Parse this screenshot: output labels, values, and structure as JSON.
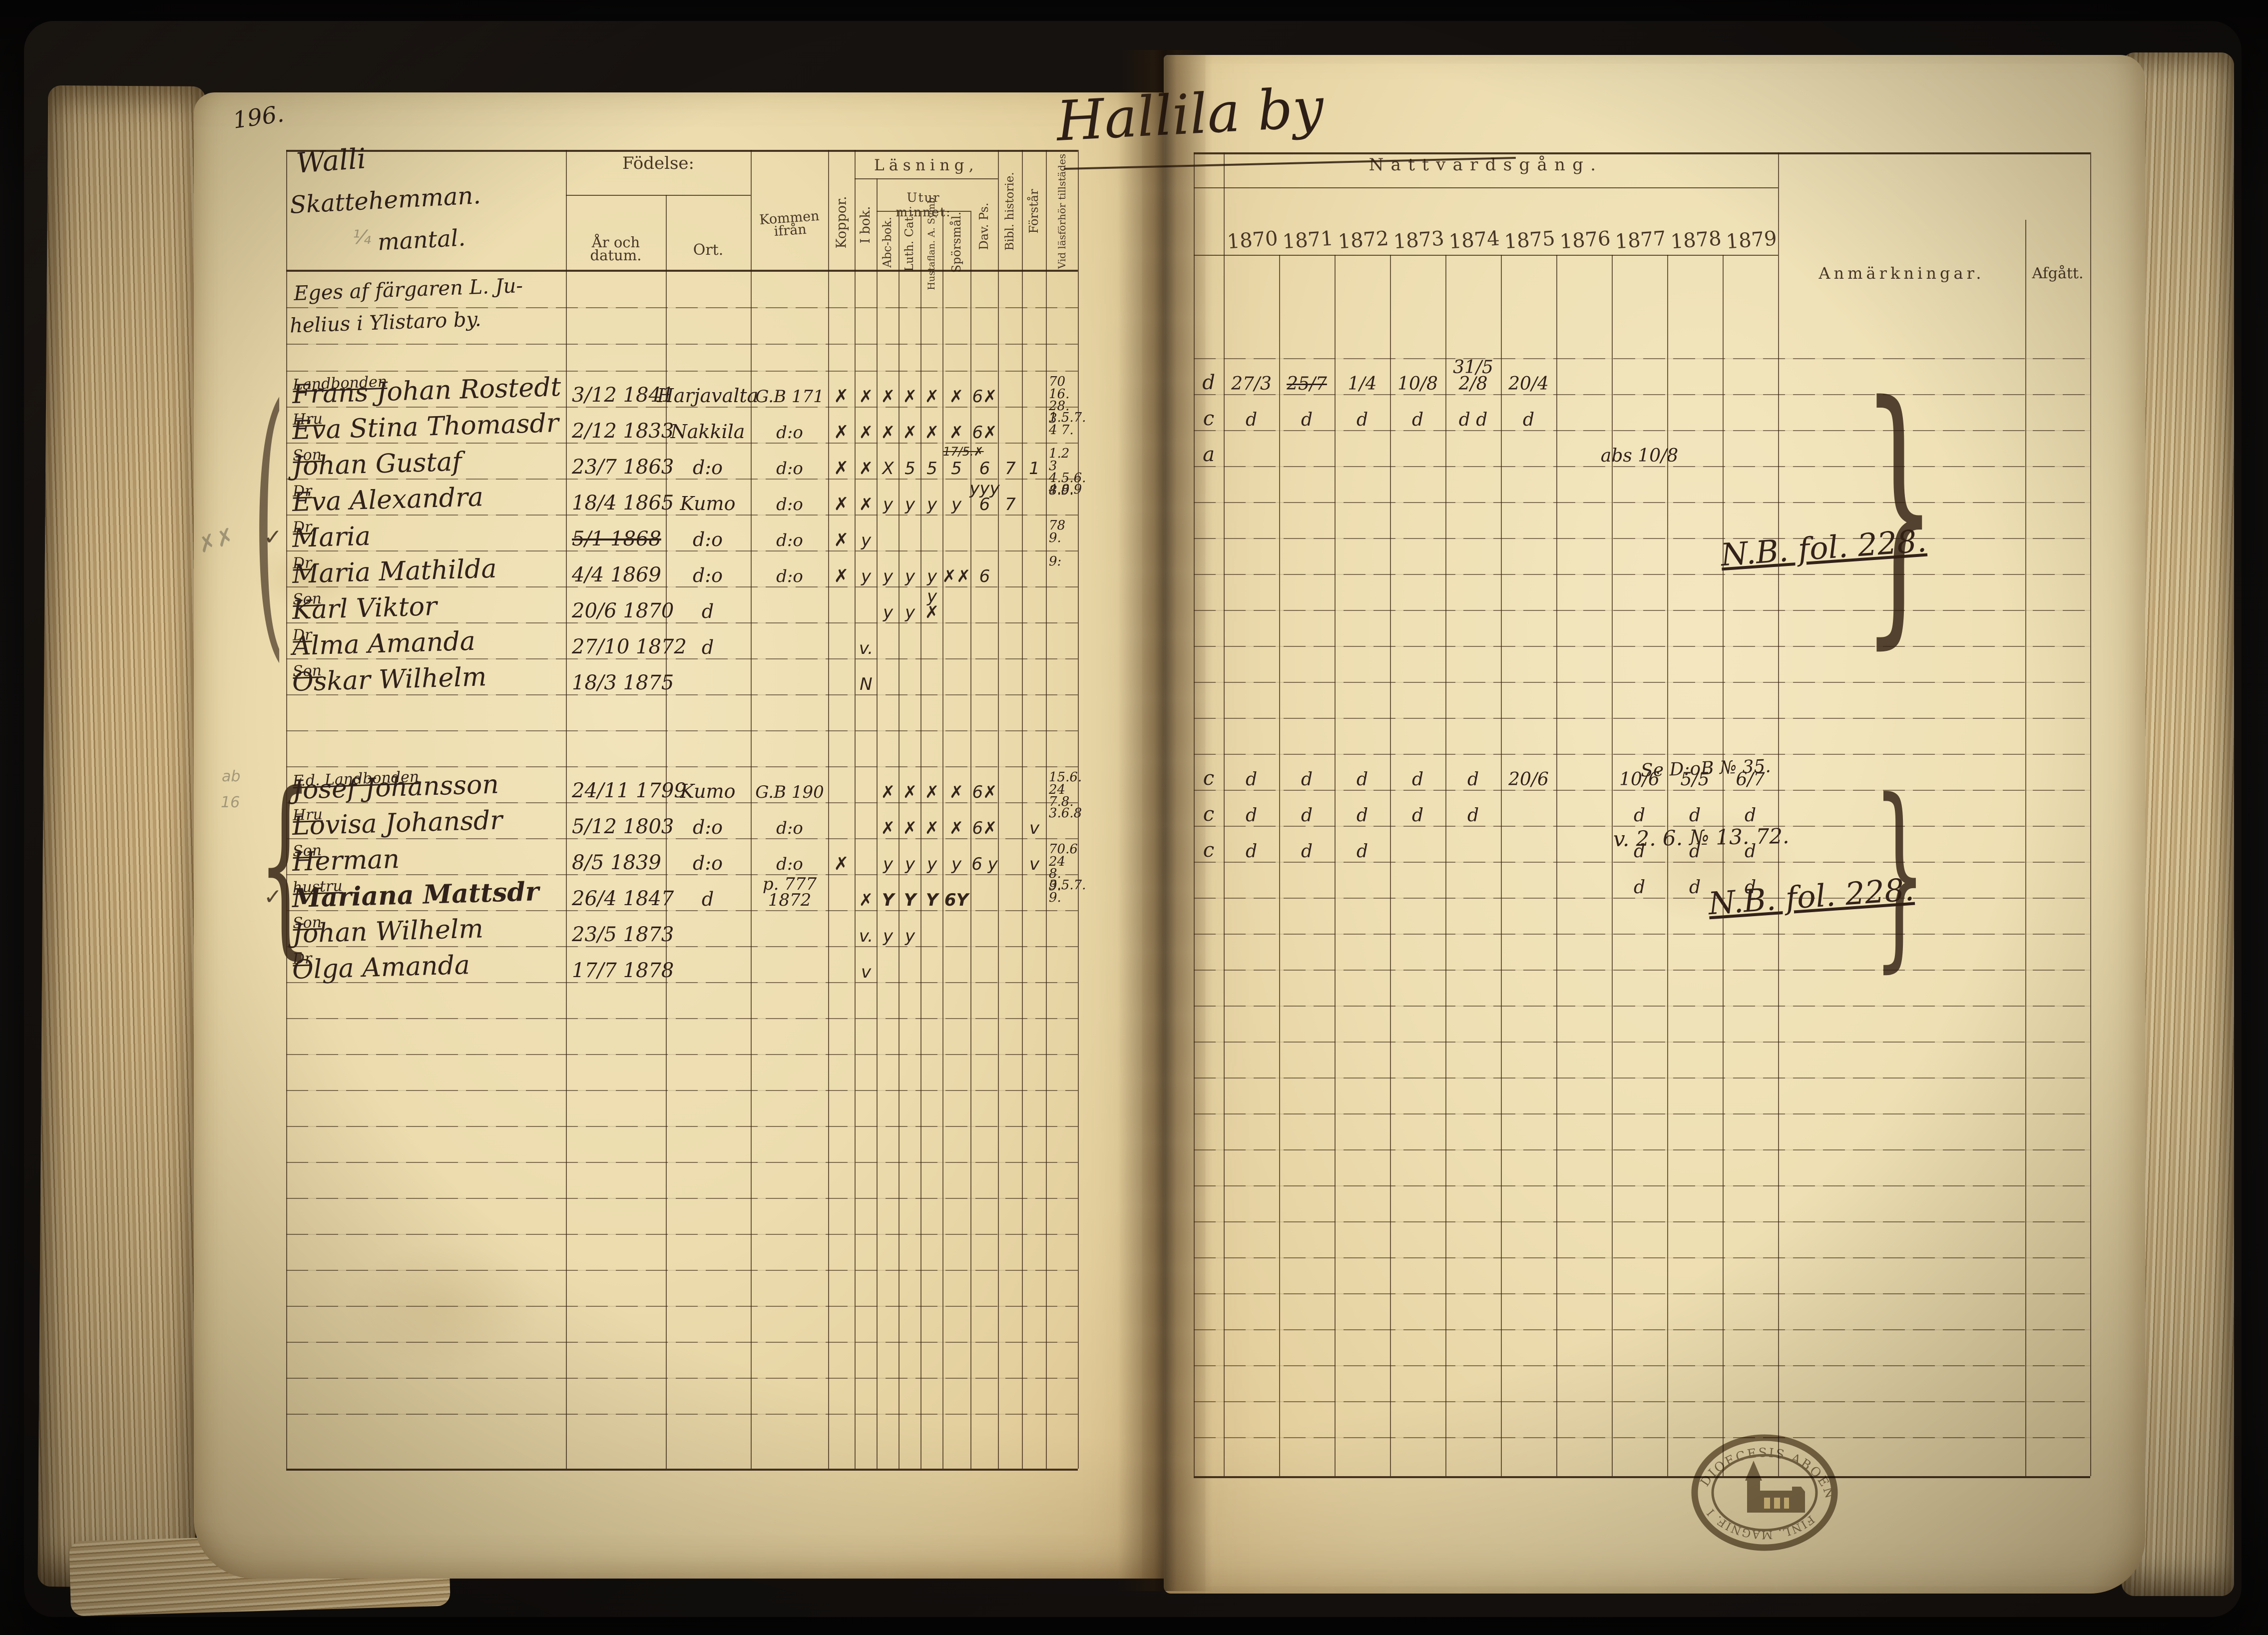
{
  "colors": {
    "background": "#0b0a09",
    "cover": "#15110e",
    "paper": "#eedfb4",
    "ink_handwriting": "#30211a",
    "ink_printed": "#483626",
    "pencil": "#767058",
    "stamp": "#6b5c45"
  },
  "book": {
    "folio_number": "196.",
    "village_title": "Hallila by"
  },
  "left_page": {
    "estate": {
      "name": "Walli",
      "type": "Skattehemman.",
      "fraction": "¼",
      "unit": "mantal."
    },
    "ownership_note": [
      "Eges af färgaren L. Ju-",
      "helius i Ylistaro by."
    ],
    "headers": {
      "fodelse": "Födelse:",
      "ar_och_datum": "År och datum.",
      "ort": "Ort.",
      "kommen_ifran": "Kommen ifrån",
      "koppor": "Koppor.",
      "lasning": "Läsning,",
      "i_bok": "I bok.",
      "utur_minnet": "Utur minnet:",
      "abc_bok": "Abc-bok.",
      "luth_cat": "Luth. Cat.",
      "hustaflan": "Hustaflan. A. Symb.",
      "sporsmal": "Spörsmål.",
      "dav_ps": "Dav. Ps.",
      "bibl_historie": "Bibl. historie.",
      "forstar": "Förstår",
      "vid_lasforhor": "Vid läsförhör tillstädes"
    }
  },
  "right_page": {
    "headers": {
      "nattvardsgang": "Nattvardsgång.",
      "years": [
        "1870",
        "1871",
        "1872",
        "1873",
        "1874",
        "1875",
        "1876",
        "1877",
        "1878",
        "1879"
      ],
      "anmarkningar": "Anmärkningar.",
      "afgatt": "Afgått."
    },
    "annotations": {
      "nb_fol_1": "N.B. fol. 228.",
      "se_note": "Se D:oB № 35.",
      "v_note": "v. 2. 6. № 13. 72.",
      "nb_fol_2": "N.B. fol. 228."
    },
    "stamp": {
      "arc_top": "DIOECESIS ABOENSIS",
      "arc_bottom": "FINL. MAGNIF. ING."
    }
  },
  "records": [
    {
      "role": "Landbonden",
      "name": "Frans Johan Rostedt",
      "date": "3/12 1841",
      "ort": "Harjavalta",
      "kommen": "G.B 171",
      "koppor": "✗",
      "reading": [
        "✗",
        "✗",
        "✗",
        "✗",
        "✗",
        "6✗",
        "",
        ""
      ],
      "vid": "70 16.|28.|3",
      "pre": "d",
      "years": [
        "27/3",
        "25/7",
        "1/4",
        "10/8",
        "31/5 2/8",
        "20/4",
        "",
        "",
        "",
        ""
      ],
      "years_struck": [
        1
      ]
    },
    {
      "role": "Hru",
      "name": "Eva Stina Thomasdr",
      "date": "2/12 1833",
      "ort": "Nakkila",
      "kommen": "d:o",
      "koppor": "✗",
      "reading": [
        "✗",
        "✗",
        "✗",
        "✗",
        "✗",
        "6✗",
        "",
        ""
      ],
      "sub_mark": "17/5.✗",
      "vid": "1.5.7.|4 7.",
      "pre": "c",
      "years": [
        "d",
        "d",
        "d",
        "d",
        "d d",
        "d",
        "",
        "",
        "",
        ""
      ]
    },
    {
      "role": "Son",
      "name": "Johan Gustaf",
      "date": "23/7 1863",
      "ort": "d:o",
      "kommen": "d:o",
      "koppor": "✗",
      "reading": [
        "✗",
        "X",
        "5",
        "5",
        "5",
        "6",
        "7",
        "1"
      ],
      "vid": "1.2 3|4.5.6.|8.9.",
      "pre": "a",
      "years": [
        "",
        "",
        "",
        "",
        "",
        "",
        "",
        "abs 10/8",
        "",
        ""
      ]
    },
    {
      "role": "Dr",
      "name": "Eva Alexandra",
      "date": "18/4 1865",
      "ort": "Kumo",
      "kommen": "d:o",
      "koppor": "✗",
      "reading": [
        "✗",
        "y",
        "y",
        "y",
        "y",
        "yyy 6",
        "7",
        ""
      ],
      "vid": "4.8.9",
      "pre": "",
      "years": [
        "",
        "",
        "",
        "",
        "",
        "",
        "",
        "",
        "",
        ""
      ]
    },
    {
      "role": "Dr",
      "name": "Maria",
      "date": "5/1 1868",
      "date_struck": true,
      "check": true,
      "ort": "d:o",
      "kommen": "d:o",
      "koppor": "✗",
      "reading": [
        "y",
        "",
        "",
        "",
        "",
        "",
        "",
        ""
      ],
      "vid": "78 9.",
      "pre": "",
      "years": [
        "",
        "",
        "",
        "",
        "",
        "",
        "",
        "",
        "",
        ""
      ]
    },
    {
      "role": "Dr",
      "name": "Maria Mathilda",
      "date": "4/4 1869",
      "ort": "d:o",
      "kommen": "d:o",
      "koppor": "✗",
      "reading": [
        "y",
        "y",
        "y",
        "y",
        "✗✗",
        "6",
        "",
        ""
      ],
      "vid": "9:",
      "pre": "",
      "years": [
        "",
        "",
        "",
        "",
        "",
        "",
        "",
        "",
        "",
        ""
      ]
    },
    {
      "role": "Son",
      "name": "Karl Viktor",
      "date": "20/6 1870",
      "ort": "d",
      "kommen": "",
      "koppor": "",
      "reading": [
        "",
        "y",
        "y",
        "y ✗",
        "",
        "",
        "",
        ""
      ],
      "vid": "",
      "pre": "",
      "years": [
        "",
        "",
        "",
        "",
        "",
        "",
        "",
        "",
        "",
        ""
      ]
    },
    {
      "role": "Dr",
      "name": "Alma Amanda",
      "date": "27/10 1872",
      "ort": "d",
      "kommen": "",
      "koppor": "",
      "reading": [
        "v.",
        "",
        "",
        "",
        "",
        "",
        "",
        ""
      ],
      "vid": "",
      "pre": "",
      "years": [
        "",
        "",
        "",
        "",
        "",
        "",
        "",
        "",
        "",
        ""
      ]
    },
    {
      "role": "Son",
      "name": "Oskar Wilhelm",
      "date": "18/3 1875",
      "ort": "",
      "kommen": "",
      "koppor": "",
      "reading": [
        "N",
        "",
        "",
        "",
        "",
        "",
        "",
        ""
      ],
      "vid": "",
      "pre": "",
      "years": [
        "",
        "",
        "",
        "",
        "",
        "",
        "",
        "",
        "",
        ""
      ]
    },
    {
      "role": "F.d. Landbonden",
      "name": "Josef Johansson",
      "date": "24/11 1799",
      "ort": "Kumo",
      "kommen": "G.B 190",
      "koppor": "",
      "reading": [
        "",
        "✗",
        "✗",
        "✗",
        "✗",
        "6✗",
        "",
        ""
      ],
      "vid": "15.6.|24 7.8.",
      "pre": "c",
      "years": [
        "d",
        "d",
        "d",
        "d",
        "d",
        "20/6",
        "",
        "10/6",
        "5/5",
        "6/7"
      ]
    },
    {
      "role": "Hru",
      "name": "Lovisa Johansdr",
      "date": "5/12 1803",
      "ort": "d:o",
      "kommen": "d:o",
      "koppor": "",
      "reading": [
        "",
        "✗",
        "✗",
        "✗",
        "✗",
        "6✗",
        "",
        "v"
      ],
      "vid": "3.6.8",
      "pre": "c",
      "years": [
        "d",
        "d",
        "d",
        "d",
        "d",
        "",
        "",
        "d",
        "d",
        "d"
      ]
    },
    {
      "role": "Son",
      "name": "Herman",
      "date": "8/5 1839",
      "ort": "d:o",
      "kommen": "d:o",
      "koppor": "✗",
      "reading": [
        "",
        "y",
        "y",
        "y",
        "y",
        "6 y",
        "",
        "v"
      ],
      "vid": "70.6|24 8.|9.",
      "pre": "c",
      "years": [
        "d",
        "d",
        "d",
        "",
        "",
        "",
        "",
        "d",
        "d",
        "d"
      ]
    },
    {
      "role": "hustru",
      "name": "Mariana Mattsdr",
      "date": "26/4 1847",
      "check": true,
      "ort": "d",
      "kommen": "p. 777 1872",
      "koppor": "",
      "bold": true,
      "reading": [
        "✗",
        "Y",
        "Y",
        "Y",
        "6Y",
        "",
        "",
        ""
      ],
      "vid": "3.5.7.|9.",
      "pre": "",
      "years": [
        "",
        "",
        "",
        "",
        "",
        "",
        "",
        "d",
        "d",
        "d"
      ]
    },
    {
      "role": "Son",
      "name": "Johan Wilhelm",
      "date": "23/5 1873",
      "ort": "",
      "kommen": "",
      "koppor": "",
      "reading": [
        "v.",
        "y",
        "y",
        "",
        "",
        "",
        "",
        ""
      ],
      "vid": "",
      "pre": "",
      "years": [
        "",
        "",
        "",
        "",
        "",
        "",
        "",
        "",
        "",
        ""
      ]
    },
    {
      "role": "Dr",
      "name": "Olga Amanda",
      "date": "17/7 1878",
      "ort": "",
      "kommen": "",
      "koppor": "",
      "reading": [
        "v",
        "",
        "",
        "",
        "",
        "",
        "",
        ""
      ],
      "vid": "",
      "pre": "",
      "years": [
        "",
        "",
        "",
        "",
        "",
        "",
        "",
        "",
        "",
        ""
      ]
    }
  ],
  "margin_marks": {
    "check": "✓",
    "pencil_scribble": "✗✗",
    "pencil_note_1": "ab",
    "pencil_note_2": "16"
  }
}
